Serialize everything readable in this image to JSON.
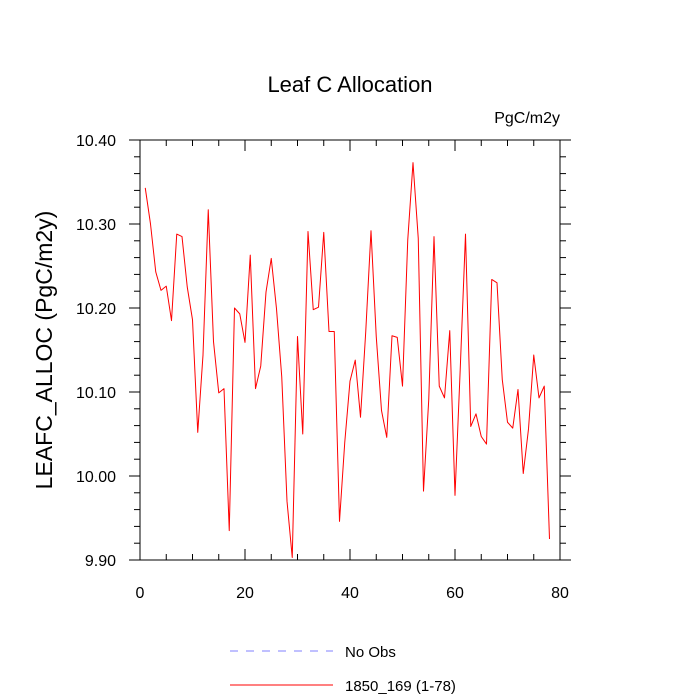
{
  "chart_data": {
    "type": "line",
    "title": "Leaf C Allocation",
    "units": "PgC/m2y",
    "ylabel": "LEAFC_ALLOC  (PgC/m2y)",
    "xlabel": "",
    "xlim": [
      0,
      80
    ],
    "ylim": [
      9.9,
      10.4
    ],
    "xticks": [
      0,
      20,
      40,
      60,
      80
    ],
    "xtick_labels": [
      "0",
      "20",
      "40",
      "60",
      "80"
    ],
    "yticks": [
      9.9,
      10.0,
      10.1,
      10.2,
      10.3,
      10.4
    ],
    "ytick_labels": [
      "9.90",
      "10.00",
      "10.10",
      "10.20",
      "10.30",
      "10.40"
    ],
    "grid": false,
    "legend_position": "bottom",
    "series": [
      {
        "name": "1850_169 (1-78)",
        "color": "#ff0000",
        "dash": "solid",
        "x": [
          1,
          2,
          3,
          4,
          5,
          6,
          7,
          8,
          9,
          10,
          11,
          12,
          13,
          14,
          15,
          16,
          17,
          18,
          19,
          20,
          21,
          22,
          23,
          24,
          25,
          26,
          27,
          28,
          29,
          30,
          31,
          32,
          33,
          34,
          35,
          36,
          37,
          38,
          39,
          40,
          41,
          42,
          43,
          44,
          45,
          46,
          47,
          48,
          49,
          50,
          51,
          52,
          53,
          54,
          55,
          56,
          57,
          58,
          59,
          60,
          61,
          62,
          63,
          64,
          65,
          66,
          67,
          68,
          69,
          70,
          71,
          72,
          73,
          74,
          75,
          76,
          77,
          78
        ],
        "values": [
          10.343,
          10.3,
          10.243,
          10.221,
          10.226,
          10.185,
          10.288,
          10.285,
          10.225,
          10.186,
          10.052,
          10.144,
          10.317,
          10.16,
          10.099,
          10.104,
          9.935,
          10.2,
          10.193,
          10.159,
          10.263,
          10.104,
          10.131,
          10.219,
          10.259,
          10.199,
          10.118,
          9.97,
          9.903,
          10.166,
          10.05,
          10.291,
          10.198,
          10.201,
          10.29,
          10.172,
          10.172,
          9.946,
          10.04,
          10.113,
          10.138,
          10.07,
          10.172,
          10.292,
          10.166,
          10.078,
          10.046,
          10.167,
          10.165,
          10.107,
          10.281,
          10.373,
          10.283,
          9.982,
          10.091,
          10.285,
          10.107,
          10.093,
          10.173,
          9.977,
          10.128,
          10.288,
          10.059,
          10.074,
          10.047,
          10.038,
          10.234,
          10.23,
          10.115,
          10.064,
          10.057,
          10.103,
          10.003,
          10.056,
          10.144,
          10.093,
          10.107,
          9.925
        ]
      }
    ],
    "legend": [
      {
        "label": "No Obs",
        "color": "#8080ff",
        "dash": "dashed"
      },
      {
        "label": "1850_169 (1-78)",
        "color": "#ff0000",
        "dash": "solid"
      }
    ]
  }
}
